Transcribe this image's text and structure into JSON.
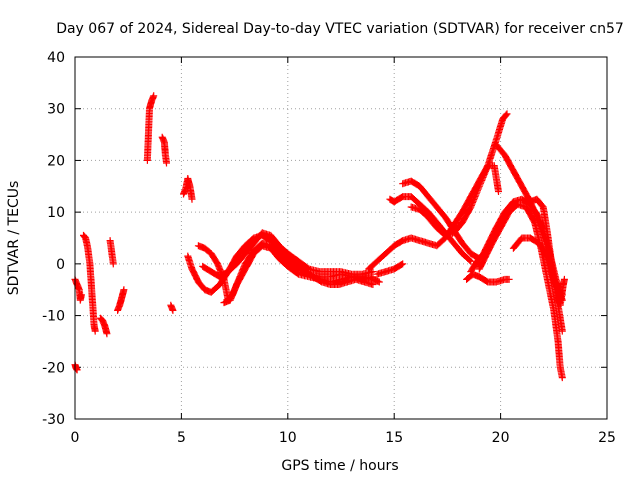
{
  "chart_data": {
    "type": "scatter",
    "title": "Day 067 of 2024, Sidereal Day-to-day VTEC variation (SDTVAR) for receiver cn57",
    "xlabel": "GPS time / hours",
    "ylabel": "SDTVAR / TECUs",
    "xlim": [
      0,
      25
    ],
    "ylim": [
      -30,
      40
    ],
    "xticks": [
      "0",
      "5",
      "10",
      "15",
      "20",
      "25"
    ],
    "yticks": [
      "-30",
      "-20",
      "-10",
      "0",
      "10",
      "20",
      "30",
      "40"
    ],
    "grid": true,
    "marker": "+",
    "color": "#ff0000",
    "series": [
      {
        "name": "s1",
        "points": [
          [
            0.0,
            -3
          ],
          [
            0.1,
            -4
          ],
          [
            0.2,
            -5
          ],
          [
            0.25,
            -7
          ],
          [
            0.3,
            -6
          ]
        ]
      },
      {
        "name": "s2",
        "points": [
          [
            0.0,
            -19.5
          ],
          [
            0.05,
            -20.2
          ],
          [
            0.1,
            -20.5
          ]
        ]
      },
      {
        "name": "s3",
        "points": [
          [
            0.4,
            5.5
          ],
          [
            0.5,
            5
          ],
          [
            0.6,
            3
          ],
          [
            0.7,
            0
          ],
          [
            0.75,
            -3
          ],
          [
            0.8,
            -6
          ],
          [
            0.85,
            -9
          ],
          [
            0.9,
            -12
          ],
          [
            0.95,
            -13
          ]
        ]
      },
      {
        "name": "s4",
        "points": [
          [
            1.2,
            -10.5
          ],
          [
            1.3,
            -11
          ],
          [
            1.4,
            -12
          ],
          [
            1.5,
            -13.5
          ]
        ]
      },
      {
        "name": "s5",
        "points": [
          [
            1.65,
            4.5
          ],
          [
            1.7,
            3
          ],
          [
            1.75,
            1.5
          ],
          [
            1.8,
            0
          ]
        ]
      },
      {
        "name": "s6",
        "points": [
          [
            2.0,
            -9
          ],
          [
            2.1,
            -8
          ],
          [
            2.2,
            -6.5
          ],
          [
            2.3,
            -5
          ]
        ]
      },
      {
        "name": "s7",
        "points": [
          [
            3.4,
            20
          ],
          [
            3.5,
            30
          ],
          [
            3.6,
            31.5
          ],
          [
            3.7,
            32.5
          ]
        ]
      },
      {
        "name": "s8",
        "points": [
          [
            4.1,
            24.5
          ],
          [
            4.2,
            23.5
          ],
          [
            4.25,
            21
          ],
          [
            4.3,
            19.5
          ]
        ]
      },
      {
        "name": "s9",
        "points": [
          [
            4.5,
            -8
          ],
          [
            4.6,
            -9
          ]
        ]
      },
      {
        "name": "s10",
        "points": [
          [
            5.1,
            13.5
          ],
          [
            5.2,
            14.5
          ],
          [
            5.3,
            16.5
          ],
          [
            5.4,
            15
          ],
          [
            5.5,
            12.5
          ]
        ]
      },
      {
        "name": "s11",
        "points": [
          [
            5.3,
            1.5
          ],
          [
            5.5,
            -1
          ],
          [
            5.8,
            -3.5
          ],
          [
            6.1,
            -5
          ],
          [
            6.4,
            -5.5
          ],
          [
            6.8,
            -4
          ],
          [
            7.2,
            -1.5
          ],
          [
            7.6,
            1.5
          ],
          [
            8.0,
            3.5
          ],
          [
            8.4,
            5
          ],
          [
            8.8,
            5.5
          ],
          [
            9.2,
            4.5
          ],
          [
            9.6,
            2.5
          ],
          [
            10.0,
            1
          ],
          [
            10.4,
            0
          ],
          [
            10.8,
            -1.5
          ],
          [
            11.2,
            -2.5
          ],
          [
            11.6,
            -3.5
          ],
          [
            12.0,
            -4
          ],
          [
            12.4,
            -4
          ],
          [
            12.8,
            -3.5
          ],
          [
            13.2,
            -3
          ],
          [
            13.6,
            -3.5
          ],
          [
            14.0,
            -4
          ]
        ]
      },
      {
        "name": "s12",
        "points": [
          [
            5.8,
            3.5
          ],
          [
            6.1,
            3
          ],
          [
            6.4,
            2
          ],
          [
            6.7,
            0
          ],
          [
            7.0,
            -3
          ],
          [
            7.2,
            -7
          ],
          [
            7.4,
            -6
          ],
          [
            7.7,
            -3
          ],
          [
            8.0,
            0
          ],
          [
            8.4,
            2.5
          ],
          [
            8.8,
            4
          ],
          [
            9.2,
            3.5
          ],
          [
            9.6,
            1.5
          ],
          [
            10.0,
            0
          ],
          [
            10.5,
            -1
          ],
          [
            11.0,
            -2
          ],
          [
            11.5,
            -2.5
          ],
          [
            12.0,
            -2.5
          ],
          [
            12.5,
            -2
          ],
          [
            13.0,
            -2.5
          ],
          [
            13.5,
            -3
          ],
          [
            14.0,
            -2.5
          ]
        ]
      },
      {
        "name": "s13",
        "points": [
          [
            6.0,
            -0.5
          ],
          [
            6.4,
            -1.5
          ],
          [
            6.8,
            -2.5
          ],
          [
            7.2,
            -1.5
          ],
          [
            7.6,
            0
          ],
          [
            8.0,
            2
          ],
          [
            8.4,
            4
          ],
          [
            8.8,
            6
          ],
          [
            9.2,
            5.5
          ],
          [
            9.6,
            3.5
          ],
          [
            10.0,
            2
          ],
          [
            10.5,
            0.5
          ],
          [
            11.0,
            -1
          ],
          [
            11.5,
            -1.5
          ],
          [
            12.0,
            -1.5
          ],
          [
            12.5,
            -1.5
          ],
          [
            13.0,
            -2
          ],
          [
            13.5,
            -2
          ],
          [
            14.0,
            -1.5
          ]
        ]
      },
      {
        "name": "s14",
        "points": [
          [
            7.0,
            -7.5
          ],
          [
            7.3,
            -7
          ],
          [
            7.6,
            -4
          ],
          [
            8.0,
            -1
          ],
          [
            8.4,
            2
          ],
          [
            8.8,
            3.5
          ],
          [
            9.2,
            3
          ],
          [
            9.6,
            1
          ],
          [
            10.0,
            -0.5
          ],
          [
            10.5,
            -2
          ],
          [
            11.0,
            -2.5
          ],
          [
            11.5,
            -3
          ],
          [
            12.0,
            -3.5
          ],
          [
            12.5,
            -3
          ],
          [
            13.0,
            -2.5
          ],
          [
            13.5,
            -2.5
          ],
          [
            14.0,
            -3
          ],
          [
            14.3,
            -3.5
          ]
        ]
      },
      {
        "name": "s15",
        "points": [
          [
            13.8,
            -1
          ],
          [
            14.2,
            0.5
          ],
          [
            14.6,
            2
          ],
          [
            15.0,
            3.5
          ],
          [
            15.4,
            4.5
          ],
          [
            15.8,
            5
          ],
          [
            16.2,
            4.5
          ],
          [
            16.6,
            4
          ],
          [
            17.0,
            3.5
          ],
          [
            17.4,
            5
          ],
          [
            17.8,
            7.5
          ],
          [
            18.2,
            10
          ],
          [
            18.6,
            13
          ],
          [
            19.0,
            16
          ],
          [
            19.4,
            19
          ],
          [
            19.7,
            19
          ],
          [
            19.9,
            14
          ]
        ]
      },
      {
        "name": "s16",
        "points": [
          [
            14.2,
            -2
          ],
          [
            14.6,
            -1.5
          ],
          [
            15.0,
            -1
          ],
          [
            15.4,
            0
          ]
        ]
      },
      {
        "name": "s17",
        "points": [
          [
            14.8,
            12.5
          ],
          [
            15.0,
            12
          ],
          [
            15.4,
            13
          ],
          [
            15.8,
            13
          ],
          [
            16.2,
            11.5
          ],
          [
            16.6,
            10
          ],
          [
            17.0,
            8
          ],
          [
            17.4,
            6
          ],
          [
            17.8,
            4
          ],
          [
            18.2,
            2
          ],
          [
            18.6,
            0.5
          ]
        ]
      },
      {
        "name": "s18",
        "points": [
          [
            15.4,
            15.5
          ],
          [
            15.8,
            16
          ],
          [
            16.2,
            15
          ],
          [
            16.6,
            13
          ],
          [
            17.0,
            11
          ],
          [
            17.4,
            9
          ],
          [
            17.8,
            6.5
          ],
          [
            18.2,
            4
          ],
          [
            18.6,
            2
          ],
          [
            19.0,
            1
          ]
        ]
      },
      {
        "name": "s19",
        "points": [
          [
            15.8,
            11
          ],
          [
            16.2,
            10.5
          ],
          [
            16.6,
            9
          ],
          [
            17.0,
            7
          ],
          [
            17.4,
            5.5
          ],
          [
            17.8,
            6
          ],
          [
            18.2,
            8
          ],
          [
            18.6,
            11
          ],
          [
            19.0,
            15
          ],
          [
            19.4,
            19
          ],
          [
            19.8,
            24
          ],
          [
            20.1,
            28
          ],
          [
            20.3,
            29
          ]
        ]
      },
      {
        "name": "s20",
        "points": [
          [
            18.4,
            -3
          ],
          [
            18.7,
            -2
          ],
          [
            19.0,
            -2.5
          ],
          [
            19.4,
            -3.5
          ],
          [
            19.8,
            -3.5
          ],
          [
            20.2,
            -3
          ],
          [
            20.4,
            -3
          ]
        ]
      },
      {
        "name": "s21",
        "points": [
          [
            18.6,
            -1.5
          ],
          [
            18.9,
            0.5
          ],
          [
            19.2,
            2
          ],
          [
            19.5,
            4.5
          ],
          [
            19.8,
            7
          ],
          [
            20.2,
            10
          ],
          [
            20.6,
            12
          ],
          [
            21.0,
            12.5
          ],
          [
            21.4,
            11.5
          ],
          [
            21.8,
            9
          ],
          [
            22.2,
            4
          ],
          [
            22.6,
            -3
          ],
          [
            22.9,
            -6
          ]
        ]
      },
      {
        "name": "s22",
        "points": [
          [
            19.0,
            -1
          ],
          [
            19.3,
            1.5
          ],
          [
            19.6,
            4
          ],
          [
            20.0,
            7
          ],
          [
            20.4,
            10
          ],
          [
            20.8,
            11.5
          ],
          [
            21.2,
            11
          ],
          [
            21.6,
            8
          ],
          [
            21.9,
            3
          ],
          [
            22.2,
            -3
          ],
          [
            22.5,
            -9
          ],
          [
            22.7,
            -15
          ],
          [
            22.8,
            -20
          ],
          [
            22.9,
            -22
          ]
        ]
      },
      {
        "name": "s23",
        "points": [
          [
            19.8,
            23
          ],
          [
            20.2,
            21
          ],
          [
            20.6,
            18
          ],
          [
            21.0,
            15
          ],
          [
            21.4,
            12
          ],
          [
            21.8,
            8
          ],
          [
            22.1,
            4
          ],
          [
            22.4,
            -1
          ],
          [
            22.7,
            -8
          ],
          [
            22.9,
            -13
          ]
        ]
      },
      {
        "name": "s24",
        "points": [
          [
            20.6,
            3
          ],
          [
            21.0,
            5
          ],
          [
            21.4,
            5
          ],
          [
            21.8,
            4
          ],
          [
            22.1,
            2
          ],
          [
            22.4,
            -2
          ],
          [
            22.7,
            -5
          ],
          [
            22.9,
            -7
          ]
        ]
      },
      {
        "name": "s25",
        "points": [
          [
            21.4,
            12
          ],
          [
            21.7,
            12.5
          ],
          [
            22.0,
            11
          ],
          [
            22.2,
            6
          ],
          [
            22.4,
            0
          ],
          [
            22.6,
            -5
          ],
          [
            22.8,
            -8
          ],
          [
            22.95,
            -4
          ],
          [
            23.0,
            -3
          ]
        ]
      }
    ]
  }
}
